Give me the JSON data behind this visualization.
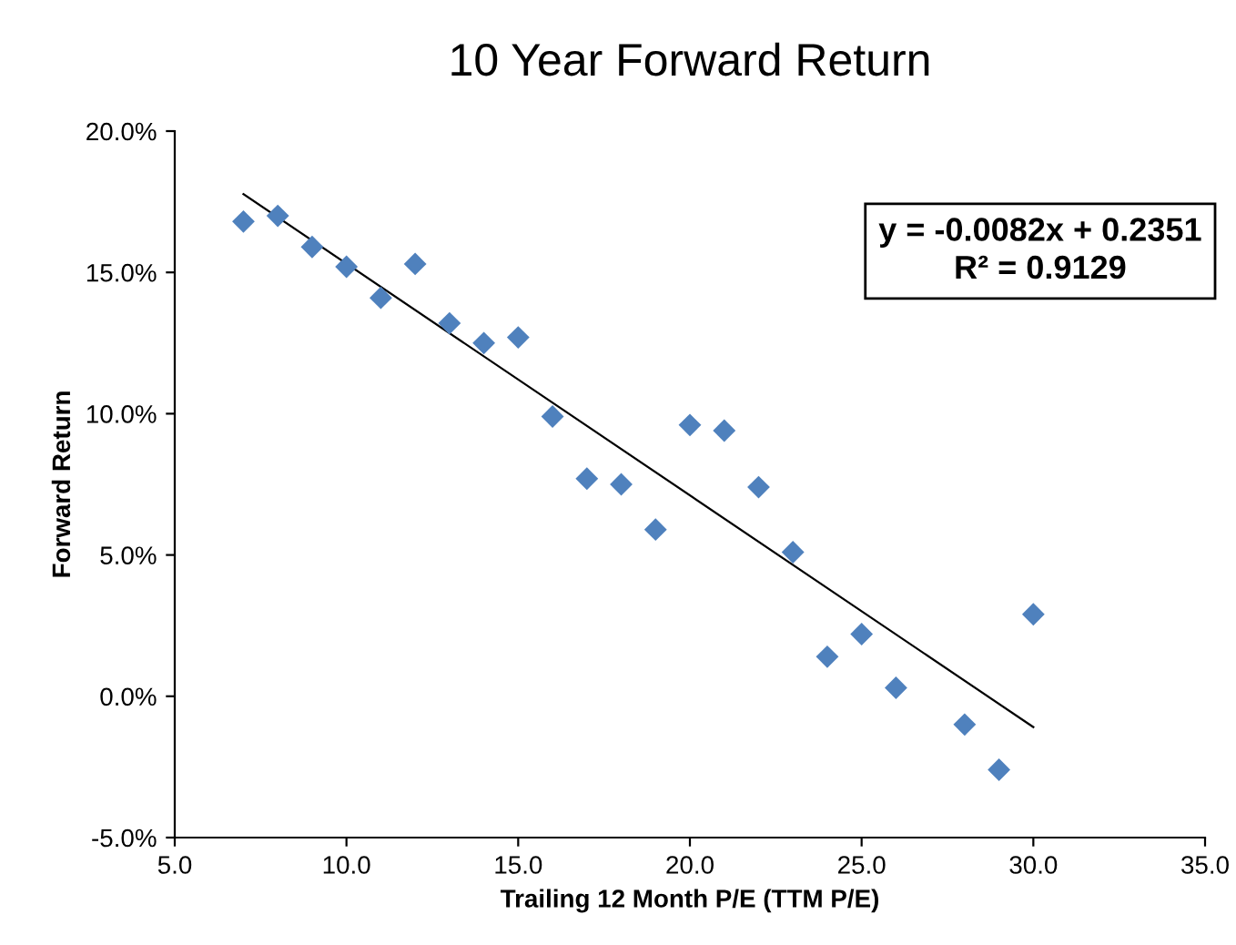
{
  "chart_data": {
    "type": "scatter",
    "title": "10 Year Forward Return",
    "xlabel": "Trailing 12 Month P/E (TTM P/E)",
    "ylabel": "Forward Return",
    "xlim": [
      5,
      35
    ],
    "xticks": [
      {
        "value": 5,
        "label": "5.0"
      },
      {
        "value": 10,
        "label": "10.0"
      },
      {
        "value": 15,
        "label": "15.0"
      },
      {
        "value": 20,
        "label": "20.0"
      },
      {
        "value": 25,
        "label": "25.0"
      },
      {
        "value": 30,
        "label": "30.0"
      },
      {
        "value": 35,
        "label": "35.0"
      }
    ],
    "ylim": [
      -5,
      20
    ],
    "yticks": [
      {
        "value": -5,
        "label": "-5.0%"
      },
      {
        "value": 0,
        "label": "0.0%"
      },
      {
        "value": 5,
        "label": "5.0%"
      },
      {
        "value": 10,
        "label": "10.0%"
      },
      {
        "value": 15,
        "label": "15.0%"
      },
      {
        "value": 20,
        "label": "20.0%"
      }
    ],
    "grid": false,
    "legend": false,
    "series": [
      {
        "marker": "diamond",
        "color": "#4f81bd",
        "x": [
          7,
          8,
          9,
          10,
          11,
          12,
          13,
          14,
          15,
          16,
          17,
          18,
          19,
          20,
          21,
          22,
          23,
          24,
          25,
          26,
          28,
          29,
          30
        ],
        "values": [
          16.8,
          17.0,
          15.9,
          15.2,
          14.1,
          15.3,
          13.2,
          12.5,
          12.7,
          9.9,
          7.7,
          7.5,
          5.9,
          9.6,
          9.4,
          7.4,
          5.1,
          1.4,
          2.2,
          0.3,
          -1.0,
          -2.6,
          2.9
        ]
      },
      {
        "type": "line",
        "marker": "none",
        "color": "#000000",
        "x": [
          7,
          30
        ],
        "values": [
          17.77,
          -1.09
        ]
      }
    ],
    "annotations": [
      "y = -0.0082x + 0.2351\nR² = 0.9129"
    ]
  }
}
